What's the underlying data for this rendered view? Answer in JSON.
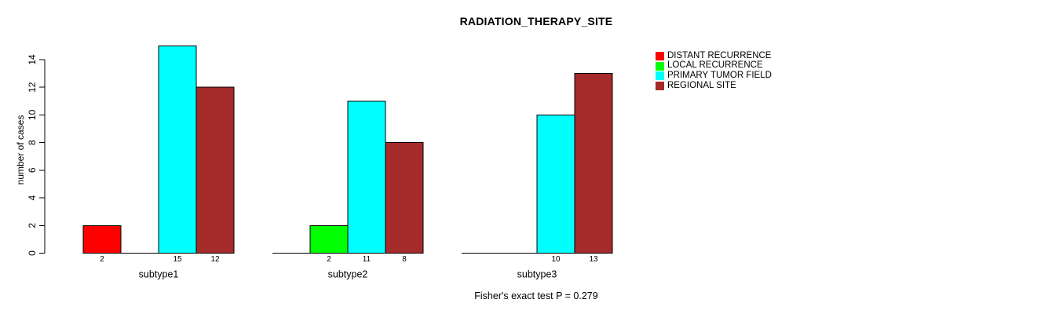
{
  "page": {
    "background_color": "#FFFFFF",
    "text_color": "#000000"
  },
  "chart_data": {
    "type": "bar",
    "title": "RADIATION_THERAPY_SITE",
    "xlabel": "",
    "ylabel": "number of cases",
    "ylim": [
      0,
      15
    ],
    "yticks": [
      0,
      2,
      4,
      6,
      8,
      10,
      12,
      14
    ],
    "grid": false,
    "categories": [
      "subtype1",
      "subtype2",
      "subtype3"
    ],
    "series": [
      {
        "name": "DISTANT RECURRENCE",
        "color": "#FF0000",
        "values": [
          2,
          0,
          0
        ]
      },
      {
        "name": "LOCAL RECURRENCE",
        "color": "#00FF00",
        "values": [
          0,
          2,
          0
        ]
      },
      {
        "name": "PRIMARY TUMOR FIELD",
        "color": "#00FFFF",
        "values": [
          15,
          11,
          10
        ]
      },
      {
        "name": "REGIONAL SITE",
        "color": "#A52A2A",
        "values": [
          12,
          8,
          13
        ]
      }
    ],
    "bar_value_labels_shown": true,
    "zero_values_hidden": true,
    "legend_position": "top-right",
    "legend_frame": false,
    "bar_border_color": "#000000",
    "axis_color": "#000000",
    "annotation": "Fisher's exact test P = 0.279"
  }
}
